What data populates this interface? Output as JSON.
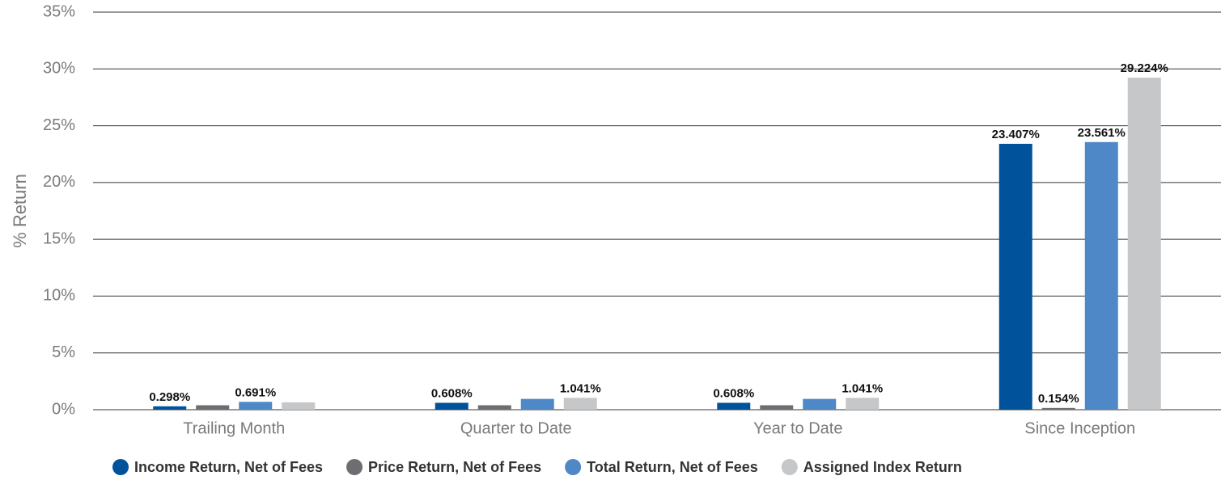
{
  "chart_data": {
    "type": "bar",
    "y_label": "% Return",
    "categories": [
      "Trailing Month",
      "Quarter to Date",
      "Year to Date",
      "Since Inception"
    ],
    "series": [
      {
        "name": "Income Return, Net of Fees",
        "color": "#00539b",
        "values": [
          0.298,
          0.608,
          0.608,
          23.407
        ],
        "value_labels": [
          "0.298%",
          "0.608%",
          "0.608%",
          "23.407%"
        ]
      },
      {
        "name": "Price Return, Net of Fees",
        "color": "#6d6e71",
        "values": [
          0.39,
          0.39,
          0.39,
          0.154
        ],
        "value_labels": [
          null,
          null,
          null,
          "0.154%"
        ]
      },
      {
        "name": "Total Return, Net of Fees",
        "color": "#4f88c6",
        "values": [
          0.691,
          0.95,
          0.95,
          23.561
        ],
        "value_labels": [
          "0.691%",
          null,
          null,
          "23.561%"
        ]
      },
      {
        "name": "Assigned Index Return",
        "color": "#c6c7c8",
        "values": [
          0.65,
          1.041,
          1.041,
          29.224
        ],
        "value_labels": [
          null,
          "1.041%",
          "1.041%",
          "29.224%"
        ]
      }
    ],
    "ylim": [
      0,
      35
    ],
    "yticks": [
      {
        "value": 0,
        "label": "0%"
      },
      {
        "value": 5,
        "label": "5%"
      },
      {
        "value": 10,
        "label": "10%"
      },
      {
        "value": 15,
        "label": "15%"
      },
      {
        "value": 20,
        "label": "20%"
      },
      {
        "value": 25,
        "label": "25%"
      },
      {
        "value": 30,
        "label": "30%"
      },
      {
        "value": 35,
        "label": "35%"
      }
    ],
    "grid": true,
    "legend": "bottom"
  }
}
